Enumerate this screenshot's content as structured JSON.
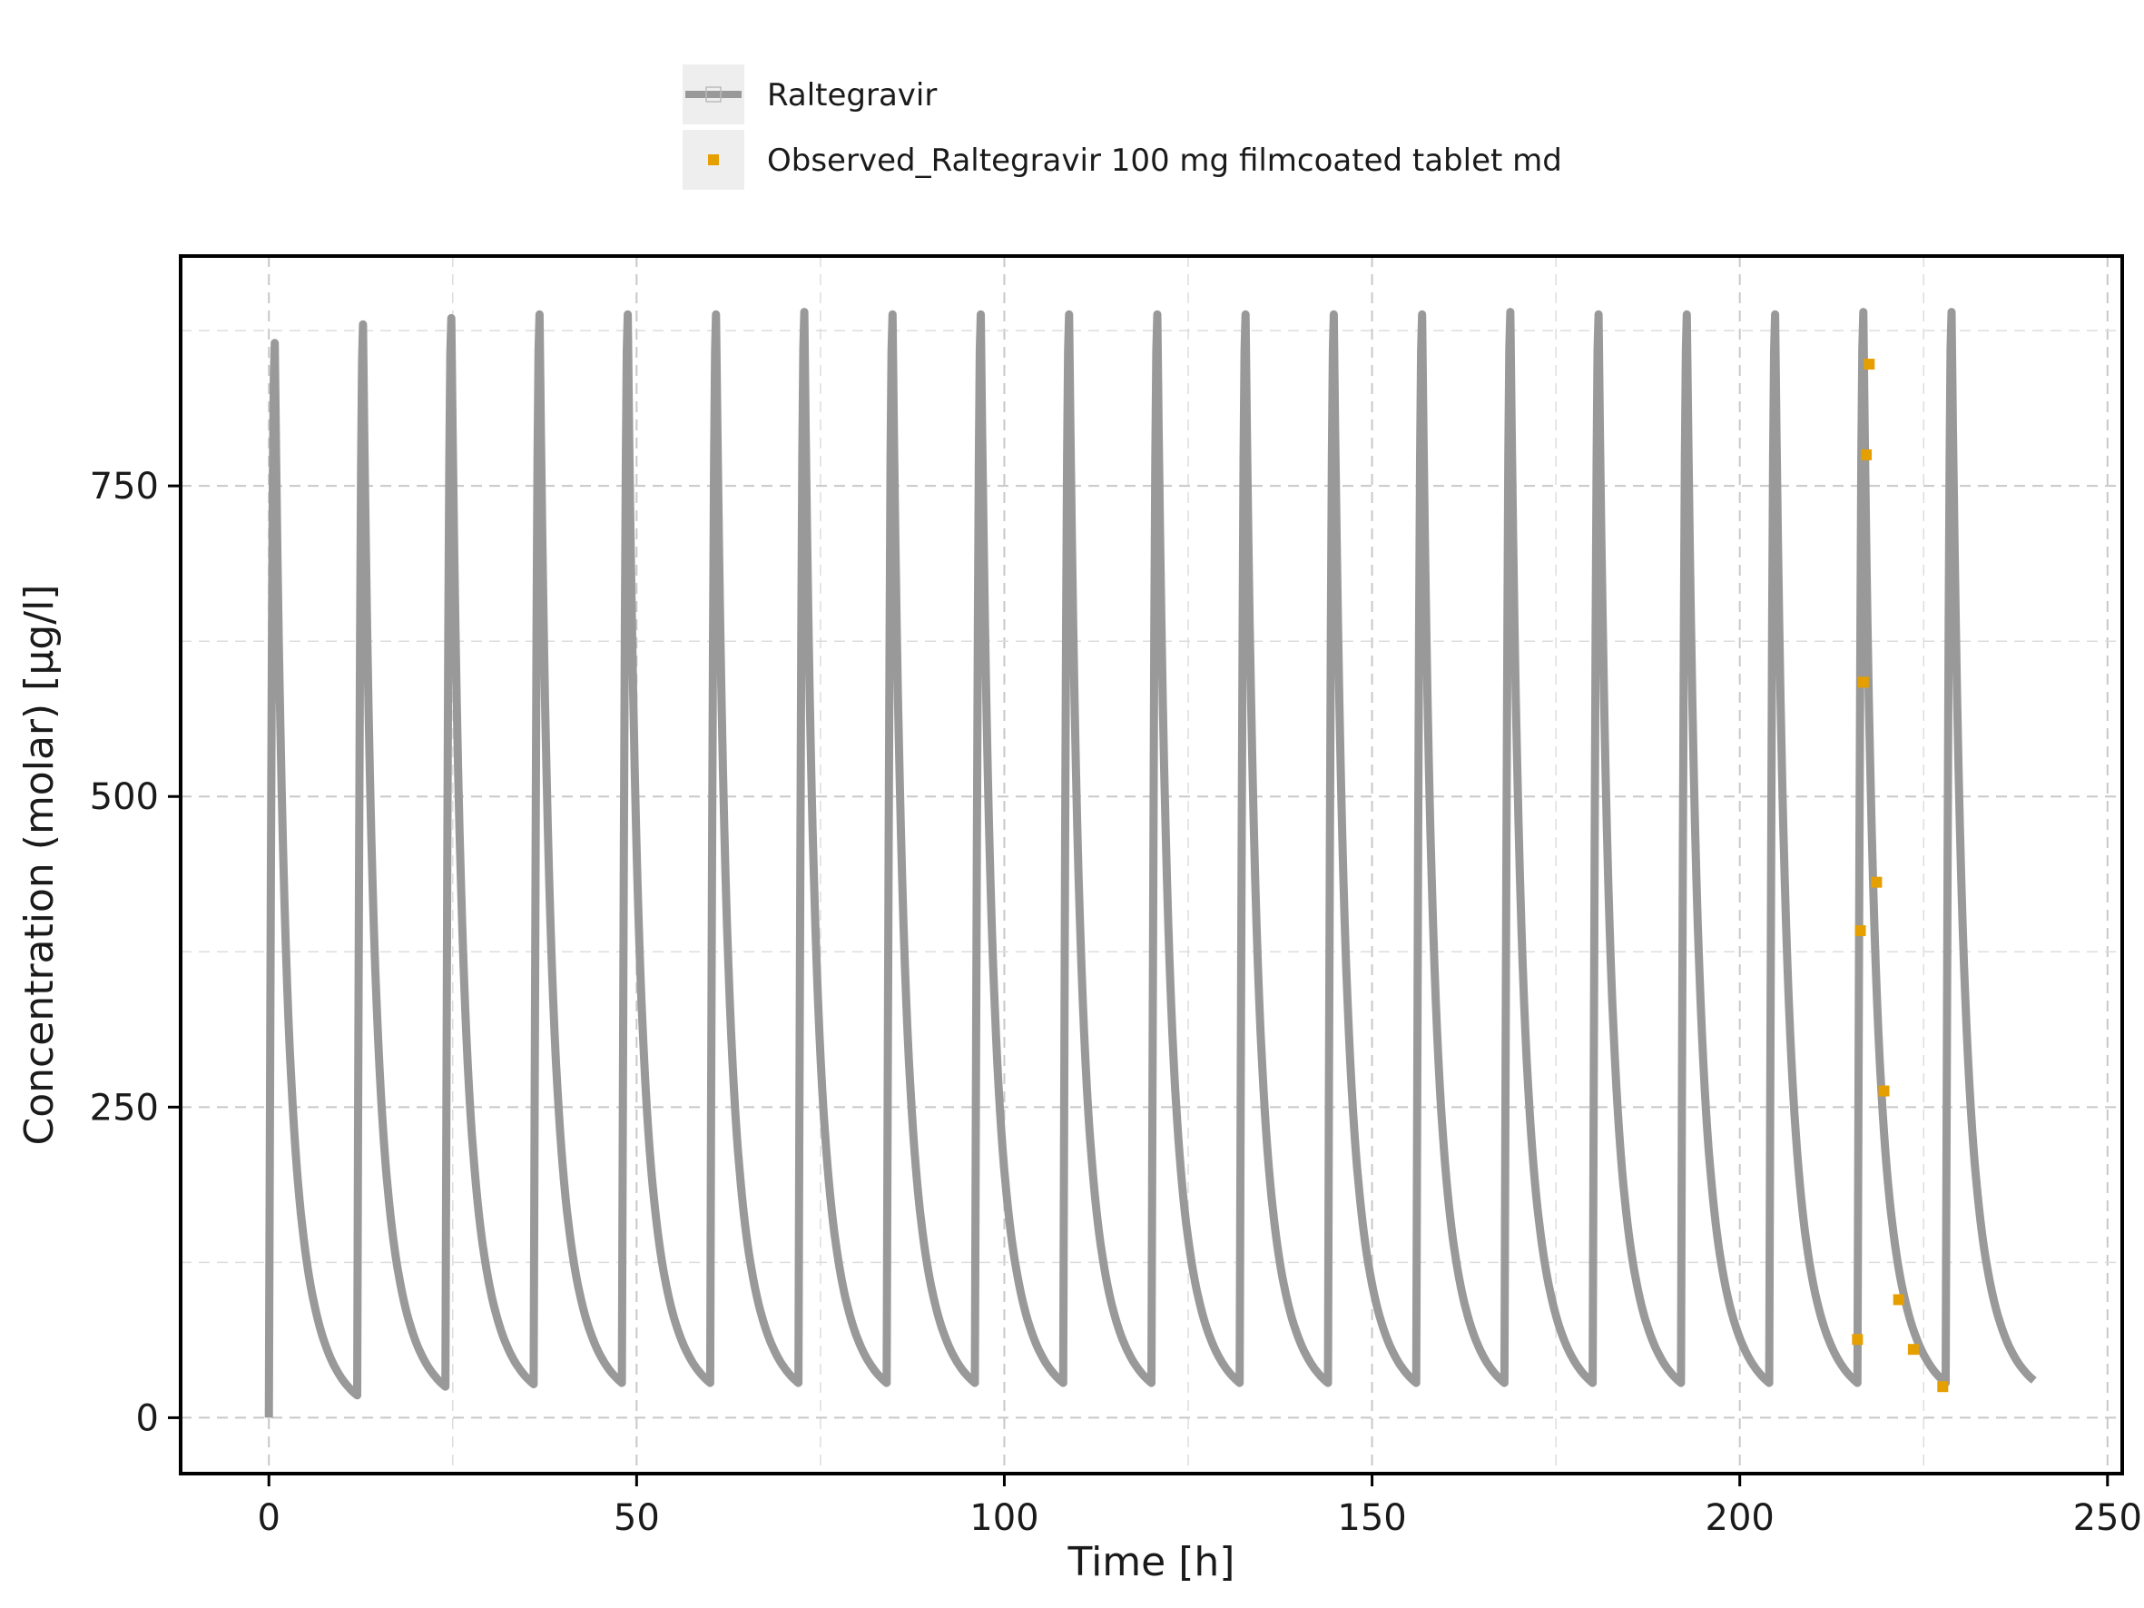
{
  "chart_data": {
    "type": "line",
    "title": "",
    "xlabel": "Time [h]",
    "ylabel": "Concentration (molar) [µg/l]",
    "xlim": [
      -12,
      252
    ],
    "ylim": [
      -45,
      935
    ],
    "xticks": [
      0,
      50,
      100,
      150,
      200,
      250
    ],
    "yticks": [
      0,
      250,
      500,
      750
    ],
    "xtick_labels": [
      "0",
      "50",
      "100",
      "150",
      "200",
      "250"
    ],
    "ytick_labels": [
      "0",
      "250",
      "500",
      "750"
    ],
    "x_minor_gridlines": [
      25,
      75,
      125,
      175,
      225
    ],
    "y_minor_gridlines": [
      125,
      375,
      625,
      875
    ],
    "grid": true,
    "legend": {
      "placement": "top-center, outside plot",
      "entries": [
        "Raltegravir",
        "Observed_Raltegravir 100 mg filmcoated tablet md"
      ]
    },
    "colors": {
      "simulated": "#999999",
      "observed": "#E69F00",
      "grid": "#c8c8c8",
      "axes": "#000000"
    },
    "series": [
      {
        "name": "Raltegravir",
        "kind": "simulated-multiple-dose",
        "dose_interval_h": 12,
        "dose_times": [
          0,
          12,
          24,
          36,
          48,
          60,
          72,
          84,
          96,
          108,
          120,
          132,
          144,
          156,
          168,
          180,
          192,
          204,
          216,
          228
        ],
        "peak_time_after_dose_h": 0.8,
        "peaks": [
          865,
          880,
          885,
          888,
          888,
          888,
          890,
          888,
          888,
          888,
          888,
          888,
          888,
          888,
          890,
          888,
          888,
          888,
          890,
          890
        ],
        "troughs": [
          18,
          25,
          27,
          28,
          28,
          28,
          28,
          28,
          28,
          28,
          28,
          28,
          28,
          28,
          28,
          28,
          28,
          28,
          28
        ],
        "end_time_h": 240,
        "end_value": 30
      },
      {
        "name": "Observed_Raltegravir 100 mg filmcoated tablet md",
        "kind": "observed",
        "x": [
          216.0,
          216.4,
          216.8,
          217.2,
          217.6,
          218.6,
          219.6,
          221.6,
          223.6,
          227.6
        ],
        "y": [
          63,
          392,
          592,
          775,
          848,
          431,
          263,
          95,
          55,
          25
        ]
      }
    ]
  }
}
